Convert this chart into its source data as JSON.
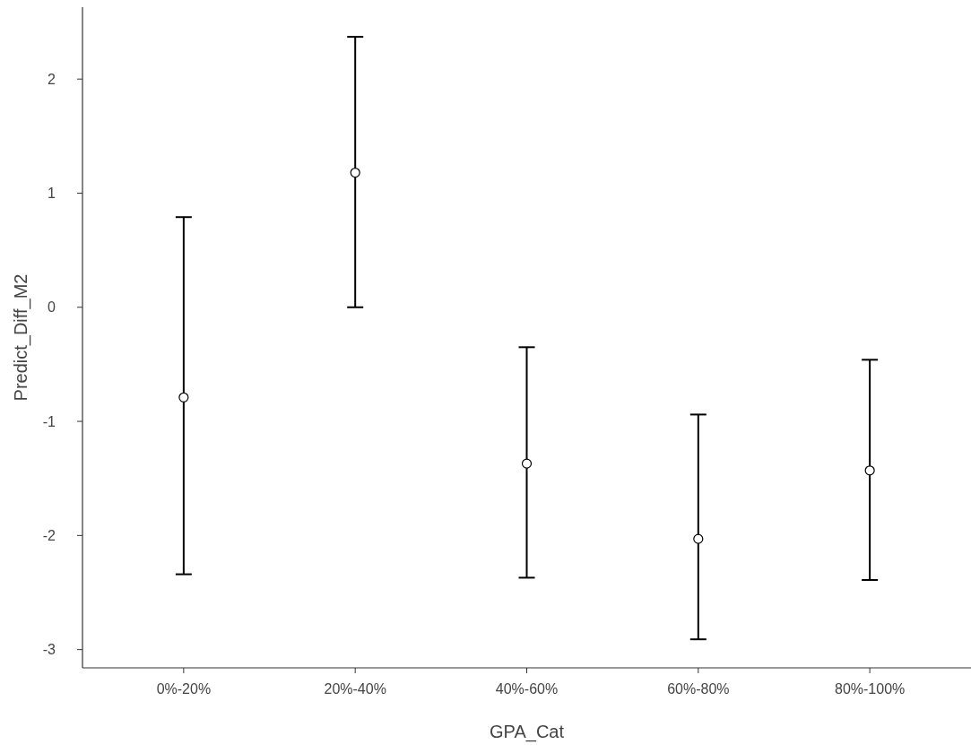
{
  "chart_data": {
    "type": "scatter",
    "xlabel": "GPA_Cat",
    "ylabel": "Predict_Diff_M2",
    "categories": [
      "0%-20%",
      "20%-40%",
      "40%-60%",
      "60%-80%",
      "80%-100%"
    ],
    "values": [
      -0.79,
      1.18,
      -1.37,
      -2.03,
      -1.43
    ],
    "errors": [
      [
        -2.34,
        0.79
      ],
      [
        0,
        2.37
      ],
      [
        -2.37,
        -0.35
      ],
      [
        -2.91,
        -0.94
      ],
      [
        -2.39,
        -0.46
      ]
    ],
    "color": "#000000",
    "marker": "circle",
    "ylim": [
      -3.16,
      2.63
    ],
    "yticks": [
      -3,
      -2,
      -1,
      0,
      1,
      2
    ]
  }
}
